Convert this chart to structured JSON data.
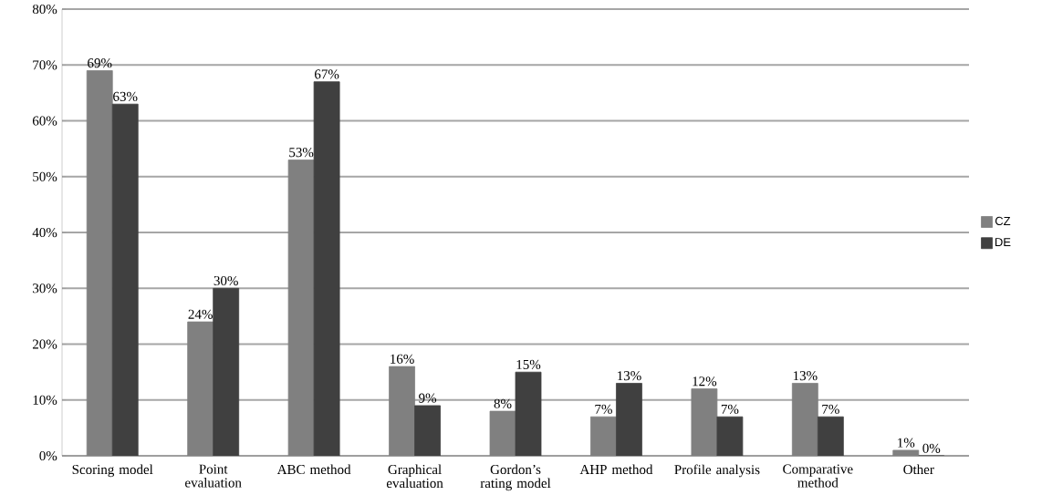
{
  "chart_data": {
    "type": "bar",
    "categories": [
      "Scoring model",
      "Point evaluation",
      "ABC method",
      "Graphical evaluation",
      "Gordon’s rating model",
      "AHP method",
      "Profile analysis",
      "Comparative method",
      "Other"
    ],
    "series": [
      {
        "name": "CZ",
        "color": "#808080",
        "values": [
          69,
          24,
          53,
          16,
          8,
          7,
          12,
          13,
          1
        ],
        "value_labels": [
          "69%",
          "24%",
          "53%",
          "16%",
          "8%",
          "7%",
          "12%",
          "13%",
          "1%"
        ]
      },
      {
        "name": "DE",
        "color": "#404040",
        "values": [
          63,
          30,
          67,
          9,
          15,
          13,
          7,
          7,
          0
        ],
        "value_labels": [
          "63%",
          "30%",
          "67%",
          "9%",
          "15%",
          "13%",
          "7%",
          "7%",
          "0%"
        ]
      }
    ],
    "ylim": [
      0,
      80
    ],
    "yticks": [
      {
        "value": 0,
        "label": "0%"
      },
      {
        "value": 10,
        "label": "10%"
      },
      {
        "value": 20,
        "label": "20%"
      },
      {
        "value": 30,
        "label": "30%"
      },
      {
        "value": 40,
        "label": "40%"
      },
      {
        "value": 50,
        "label": "50%"
      },
      {
        "value": 60,
        "label": "60%"
      },
      {
        "value": 70,
        "label": "70%"
      },
      {
        "value": 80,
        "label": "80%"
      }
    ],
    "grid": "y",
    "legend": "right"
  }
}
